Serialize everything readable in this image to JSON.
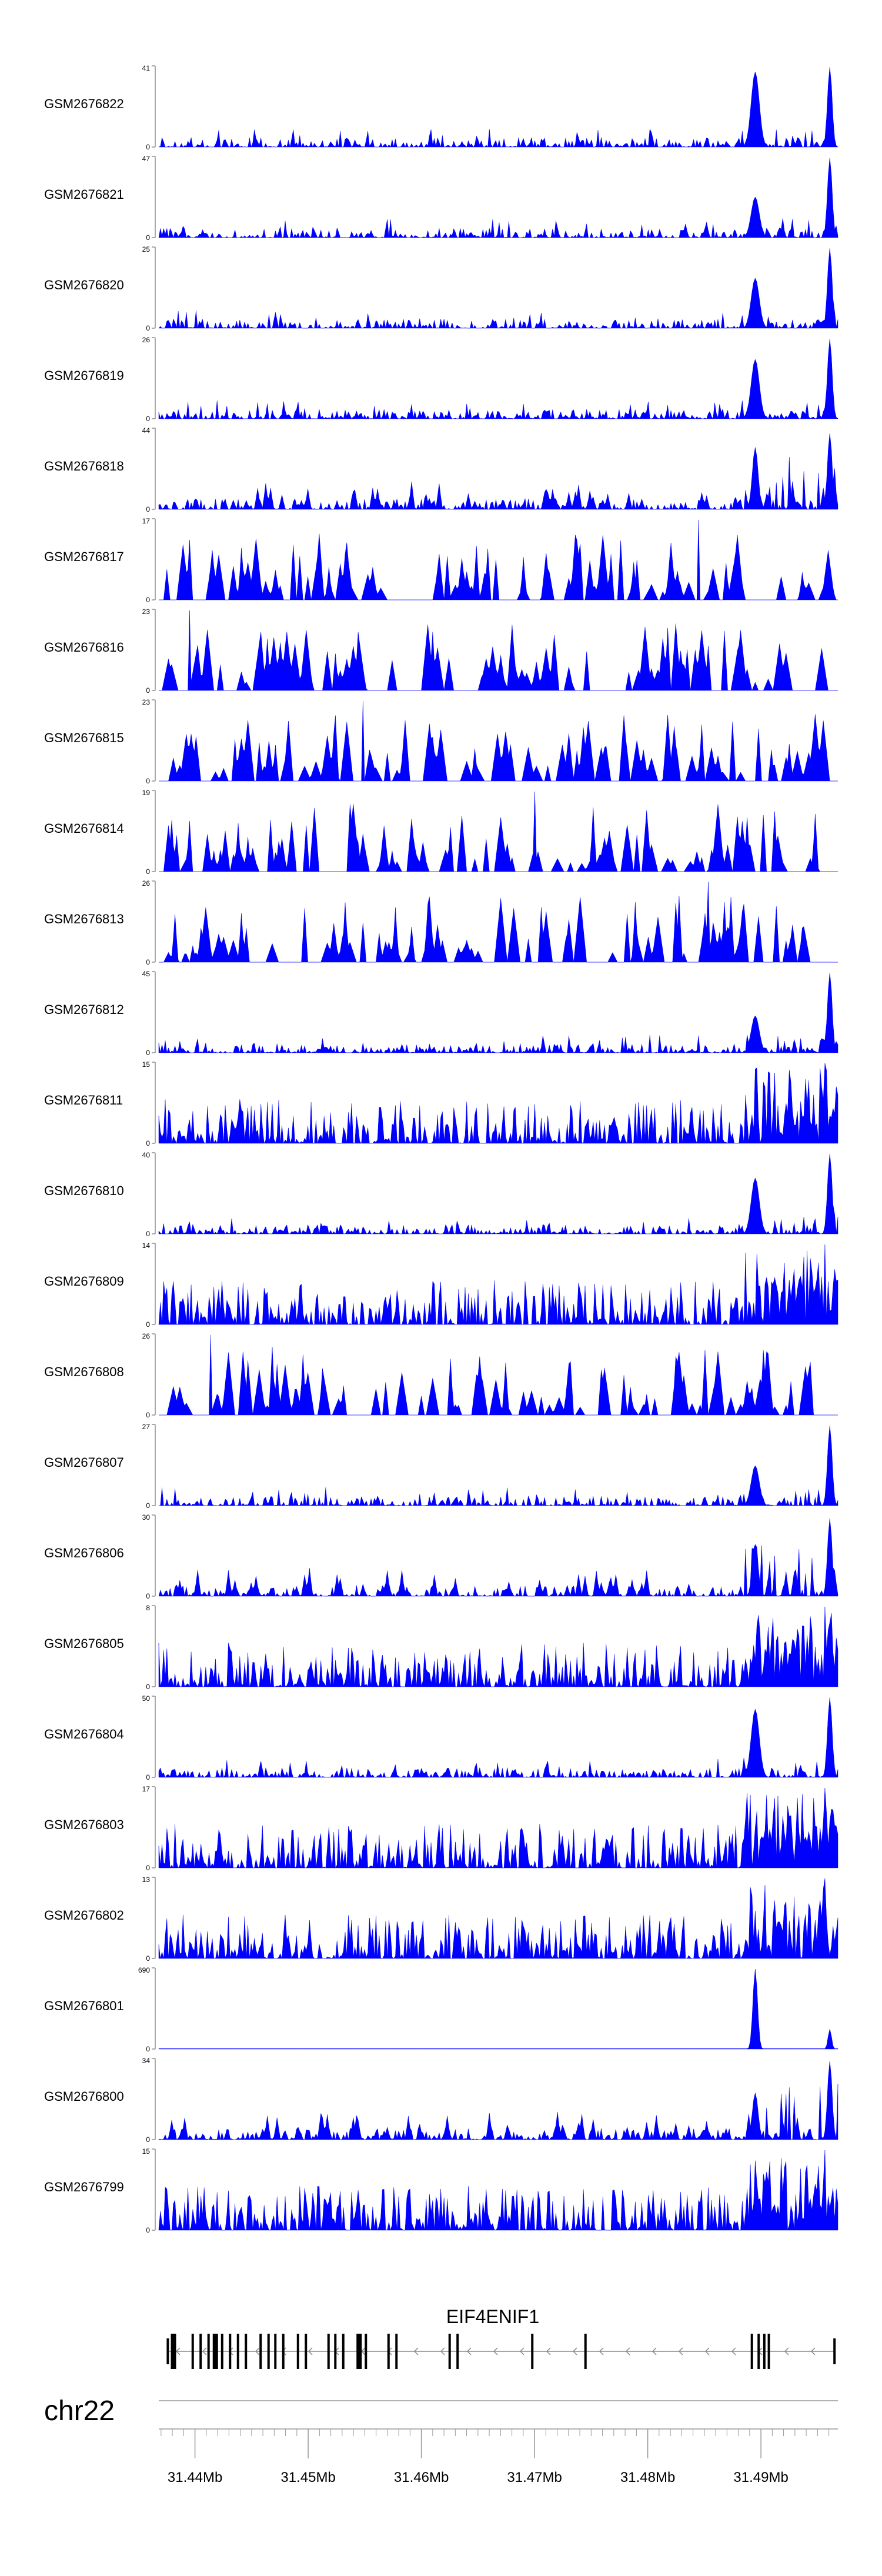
{
  "chart_data": {
    "type": "area",
    "chromosome": "chr22",
    "gene": {
      "name": "EIF4ENIF1",
      "strand": "-",
      "exons_mb": [
        31.4376,
        31.4381,
        31.4398,
        31.4405,
        31.4412,
        31.4418,
        31.4424,
        31.4431,
        31.4438,
        31.4445,
        31.4458,
        31.4465,
        31.4471,
        31.4478,
        31.4491,
        31.4498,
        31.4518,
        31.4524,
        31.4531,
        31.4545,
        31.4551,
        31.4571,
        31.4578,
        31.4625,
        31.4632,
        31.4698,
        31.4745,
        31.4892,
        31.4898,
        31.4903,
        31.4907,
        31.4965
      ]
    },
    "axis": {
      "xlim": [
        31.4368,
        31.4968
      ],
      "ticks": [
        "31.44Mb",
        "31.45Mb",
        "31.46Mb",
        "31.47Mb",
        "31.48Mb",
        "31.49Mb"
      ],
      "tick_values": [
        31.44,
        31.45,
        31.46,
        31.47,
        31.48,
        31.49
      ]
    },
    "series": [
      {
        "name": "GSM2676822",
        "ymax": 41,
        "ymin": 0,
        "color": "#0000ff",
        "profile": "base-peaks"
      },
      {
        "name": "GSM2676821",
        "ymax": 47,
        "ymin": 0,
        "color": "#0000ff",
        "profile": "base-peaks"
      },
      {
        "name": "GSM2676820",
        "ymax": 25,
        "ymin": 0,
        "color": "#0000ff",
        "profile": "base-peaks"
      },
      {
        "name": "GSM2676819",
        "ymax": 26,
        "ymin": 0,
        "color": "#0000ff",
        "profile": "base-peaks"
      },
      {
        "name": "GSM2676818",
        "ymax": 44,
        "ymin": 0,
        "color": "#0000ff",
        "profile": "spiky"
      },
      {
        "name": "GSM2676817",
        "ymax": 17,
        "ymin": 0,
        "color": "#0000ff",
        "profile": "sparse"
      },
      {
        "name": "GSM2676816",
        "ymax": 23,
        "ymin": 0,
        "color": "#0000ff",
        "profile": "sparse"
      },
      {
        "name": "GSM2676815",
        "ymax": 23,
        "ymin": 0,
        "color": "#0000ff",
        "profile": "sparse"
      },
      {
        "name": "GSM2676814",
        "ymax": 19,
        "ymin": 0,
        "color": "#0000ff",
        "profile": "sparse"
      },
      {
        "name": "GSM2676813",
        "ymax": 26,
        "ymin": 0,
        "color": "#0000ff",
        "profile": "sparse"
      },
      {
        "name": "GSM2676812",
        "ymax": 45,
        "ymin": 0,
        "color": "#0000ff",
        "profile": "base-peaks"
      },
      {
        "name": "GSM2676811",
        "ymax": 15,
        "ymin": 0,
        "color": "#0000ff",
        "profile": "dense"
      },
      {
        "name": "GSM2676810",
        "ymax": 40,
        "ymin": 0,
        "color": "#0000ff",
        "profile": "base-peaks"
      },
      {
        "name": "GSM2676809",
        "ymax": 14,
        "ymin": 0,
        "color": "#0000ff",
        "profile": "dense"
      },
      {
        "name": "GSM2676808",
        "ymax": 26,
        "ymin": 0,
        "color": "#0000ff",
        "profile": "sparse"
      },
      {
        "name": "GSM2676807",
        "ymax": 27,
        "ymin": 0,
        "color": "#0000ff",
        "profile": "base-peaks"
      },
      {
        "name": "GSM2676806",
        "ymax": 30,
        "ymin": 0,
        "color": "#0000ff",
        "profile": "spiky"
      },
      {
        "name": "GSM2676805",
        "ymax": 8,
        "ymin": 0,
        "color": "#0000ff",
        "profile": "dense"
      },
      {
        "name": "GSM2676804",
        "ymax": 50,
        "ymin": 0,
        "color": "#0000ff",
        "profile": "base-peaks"
      },
      {
        "name": "GSM2676803",
        "ymax": 17,
        "ymin": 0,
        "color": "#0000ff",
        "profile": "dense"
      },
      {
        "name": "GSM2676802",
        "ymax": 13,
        "ymin": 0,
        "color": "#0000ff",
        "profile": "dense"
      },
      {
        "name": "GSM2676801",
        "ymax": 690,
        "ymin": 0,
        "color": "#0000ff",
        "profile": "single"
      },
      {
        "name": "GSM2676800",
        "ymax": 34,
        "ymin": 0,
        "color": "#0000ff",
        "profile": "spiky"
      },
      {
        "name": "GSM2676799",
        "ymax": 15,
        "ymin": 0,
        "color": "#0000ff",
        "profile": "dense"
      }
    ]
  }
}
